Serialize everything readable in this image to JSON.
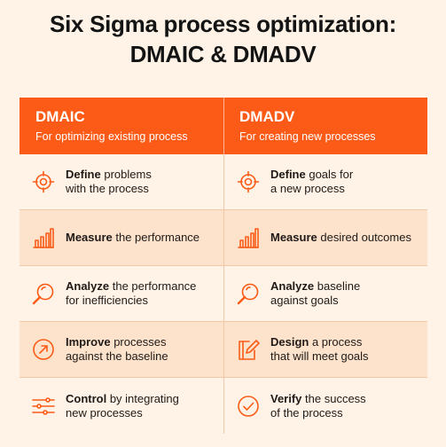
{
  "title": {
    "line1": "Six Sigma process optimization:",
    "line2": "DMAIC & DMADV"
  },
  "columns": [
    {
      "name": "DMAIC",
      "subtitle": "For optimizing existing process"
    },
    {
      "name": "DMADV",
      "subtitle": "For creating new processes"
    }
  ],
  "rows": [
    {
      "left": {
        "icon": "target-icon",
        "bold": "Define",
        "rest1": " problems",
        "line2": "with the process"
      },
      "right": {
        "icon": "target-icon",
        "bold": "Define",
        "rest1": " goals for",
        "line2": "a new process"
      }
    },
    {
      "left": {
        "icon": "bar-chart-icon",
        "bold": "Measure",
        "rest1": " the performance",
        "line2": ""
      },
      "right": {
        "icon": "bar-chart-icon",
        "bold": "Measure",
        "rest1": " desired outcomes",
        "line2": ""
      }
    },
    {
      "left": {
        "icon": "magnifier-icon",
        "bold": "Analyze",
        "rest1": " the performance",
        "line2": "for inefficiencies"
      },
      "right": {
        "icon": "magnifier-icon",
        "bold": "Analyze",
        "rest1": " baseline",
        "line2": "against goals"
      }
    },
    {
      "left": {
        "icon": "arrow-circle-icon",
        "bold": "Improve",
        "rest1": " processes",
        "line2": "against the baseline"
      },
      "right": {
        "icon": "document-edit-icon",
        "bold": "Design",
        "rest1": " a process",
        "line2": "that will meet goals"
      }
    },
    {
      "left": {
        "icon": "sliders-icon",
        "bold": "Control",
        "rest1": " by integrating",
        "line2": "new processes"
      },
      "right": {
        "icon": "check-circle-icon",
        "bold": "Verify",
        "rest1": " the success",
        "line2": "of the process"
      }
    }
  ],
  "colors": {
    "accent": "#fb5b16",
    "background": "#fef3e6",
    "shade": "#fde2cc"
  }
}
